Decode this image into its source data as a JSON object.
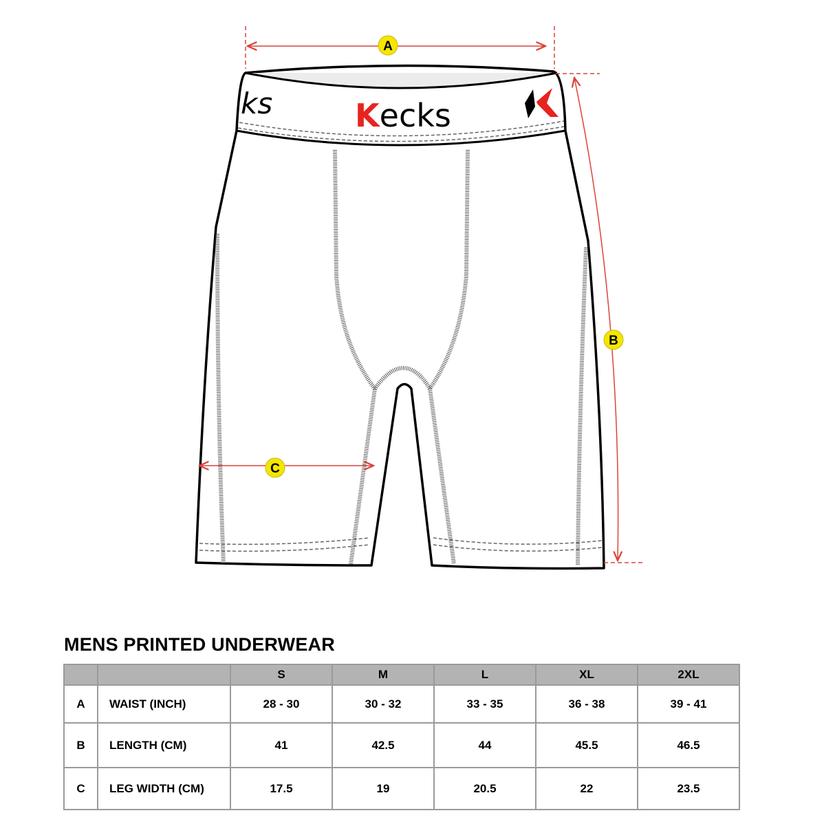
{
  "brand": "Kecks",
  "diagram": {
    "labels": {
      "a": "A",
      "b": "B",
      "c": "C"
    },
    "colors": {
      "arrow": "#d9443a",
      "badge": "#f5e600",
      "logo_red": "#e8231f",
      "stitch": "#666666"
    }
  },
  "title": "MENS PRINTED UNDERWEAR",
  "table": {
    "headers": [
      "",
      "",
      "S",
      "M",
      "L",
      "XL",
      "2XL"
    ],
    "rows": [
      {
        "key": "A",
        "label": "WAIST (INCH)",
        "values": [
          "28 - 30",
          "30 - 32",
          "33 - 35",
          "36 - 38",
          "39 - 41"
        ]
      },
      {
        "key": "B",
        "label": "LENGTH (CM)",
        "values": [
          "41",
          "42.5",
          "44",
          "45.5",
          "46.5"
        ]
      },
      {
        "key": "C",
        "label": "LEG WIDTH (CM)",
        "values": [
          "17.5",
          "19",
          "20.5",
          "22",
          "23.5"
        ]
      }
    ]
  }
}
